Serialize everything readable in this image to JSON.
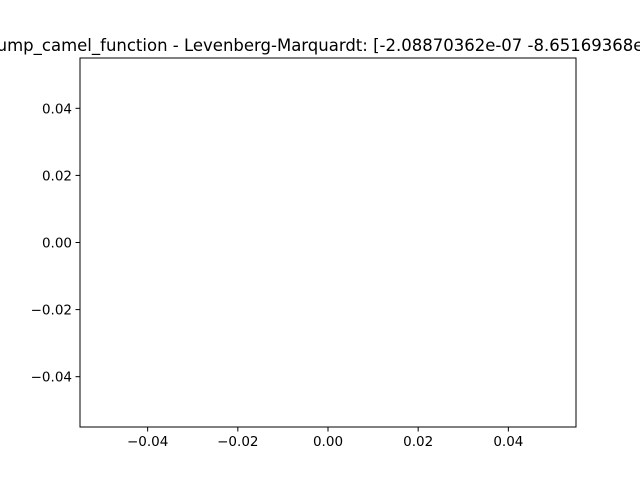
{
  "chart_data": {
    "type": "line",
    "title": "ump_camel_function - Levenberg-Marquardt: [-2.08870362e-07 -8.65169368e",
    "xlabel": "",
    "ylabel": "",
    "series": [],
    "xlim": [
      -0.055,
      0.055
    ],
    "ylim": [
      -0.055,
      0.055
    ],
    "xticks": [
      -0.04,
      -0.02,
      0.0,
      0.02,
      0.04
    ],
    "yticks": [
      -0.04,
      -0.02,
      0.0,
      0.02,
      0.04
    ],
    "xtick_labels": [
      "−0.04",
      "−0.02",
      "0.00",
      "0.02",
      "0.04"
    ],
    "ytick_labels": [
      "−0.04",
      "−0.02",
      "0.00",
      "0.02",
      "0.04"
    ],
    "grid": false,
    "legend": "none"
  }
}
